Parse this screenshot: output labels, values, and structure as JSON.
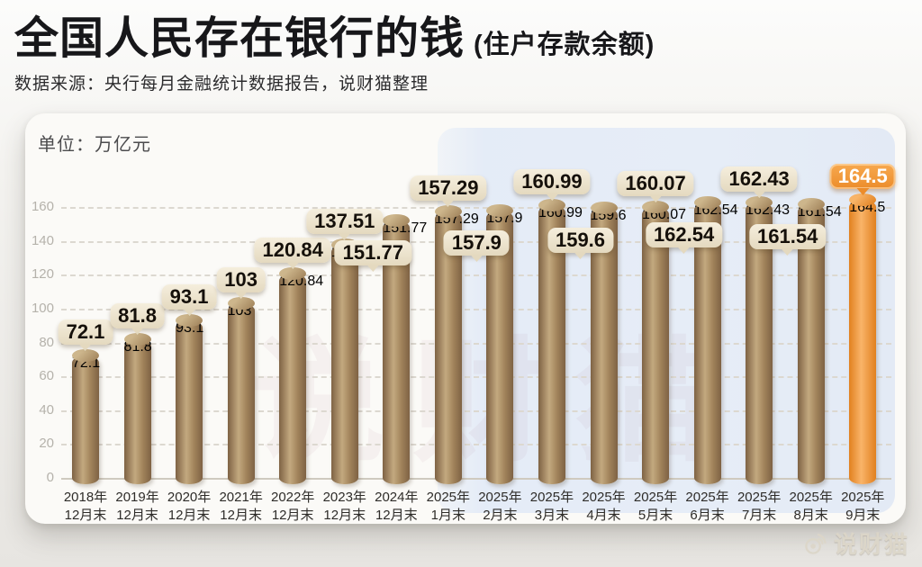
{
  "header": {
    "title": "全国人民存在银行的钱",
    "title_suffix": "(住户存款余额)",
    "source": "数据来源：央行每月金融统计数据报告，说财猫整理"
  },
  "watermark": {
    "center": "说财猫",
    "credit": "说财猫"
  },
  "chart_data": {
    "type": "bar",
    "title": "全国人民存在银行的钱 (住户存款余额)",
    "unit": "单位：万亿元",
    "xlabel": "",
    "ylabel": "万亿元",
    "ylim": [
      0,
      160
    ],
    "ytick_step": 20,
    "grid": true,
    "legend_position": "none",
    "categories": [
      {
        "line1": "2018年",
        "line2": "12月末"
      },
      {
        "line1": "2019年",
        "line2": "12月末"
      },
      {
        "line1": "2020年",
        "line2": "12月末"
      },
      {
        "line1": "2021年",
        "line2": "12月末"
      },
      {
        "line1": "2022年",
        "line2": "12月末"
      },
      {
        "line1": "2023年",
        "line2": "12月末"
      },
      {
        "line1": "2024年",
        "line2": "12月末"
      },
      {
        "line1": "2025年",
        "line2": "1月末"
      },
      {
        "line1": "2025年",
        "line2": "2月末"
      },
      {
        "line1": "2025年",
        "line2": "3月末"
      },
      {
        "line1": "2025年",
        "line2": "4月末"
      },
      {
        "line1": "2025年",
        "line2": "5月末"
      },
      {
        "line1": "2025年",
        "line2": "6月末"
      },
      {
        "line1": "2025年",
        "line2": "7月末"
      },
      {
        "line1": "2025年",
        "line2": "8月末"
      },
      {
        "line1": "2025年",
        "line2": "9月末"
      }
    ],
    "values": [
      72.1,
      81.8,
      93.1,
      103,
      120.84,
      137.51,
      151.77,
      157.29,
      157.9,
      160.99,
      159.6,
      160.07,
      162.54,
      162.43,
      161.54,
      164.5
    ],
    "label_positions": [
      "high",
      "high",
      "high",
      "high",
      "high",
      "high",
      "low",
      "high",
      "low",
      "high",
      "low",
      "high",
      "low",
      "high",
      "low",
      "high"
    ],
    "highlight_index": 15,
    "colors": {
      "bar_dark": "#7e6244",
      "bar_mid": "#a0825a",
      "bar_light": "#c3a97f",
      "bar_cap": "#cdb68c",
      "highlight_dark": "#e1801f",
      "highlight_light": "#f9b469",
      "highlight_cap": "#f8b468",
      "bubble_bg": "#e9dfc8",
      "bubble_text": "#15100a",
      "bubble_highlight": "#ee9133",
      "grid": "#dcd8d0",
      "ytick_text": "#b5b2ab",
      "xtick_text": "#2e2c29"
    }
  }
}
